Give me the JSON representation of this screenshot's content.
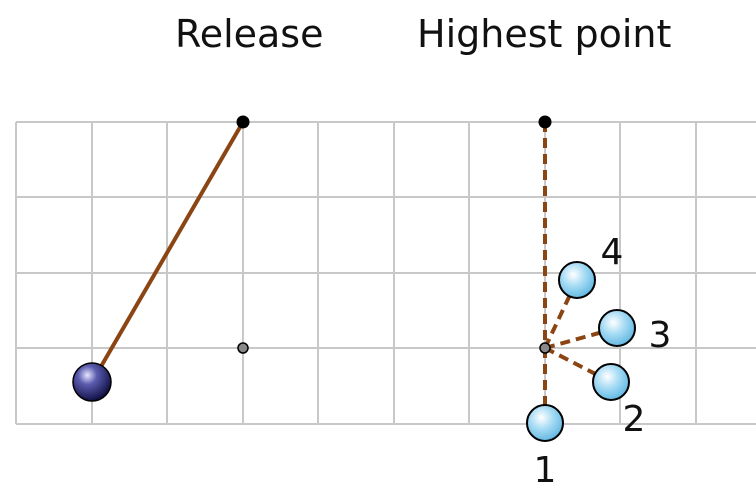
{
  "titles": {
    "release": "Release",
    "highest": "Highest point"
  },
  "positions": [
    {
      "label": "1"
    },
    {
      "label": "2"
    },
    {
      "label": "3"
    },
    {
      "label": "4"
    }
  ],
  "colors": {
    "grid": "#c8c8c8",
    "string": "#8b4513",
    "pivot": "#000000",
    "rest_point": "#888888",
    "ball_release": "#1e1e6e",
    "ball_highest": "#87ceeb"
  }
}
